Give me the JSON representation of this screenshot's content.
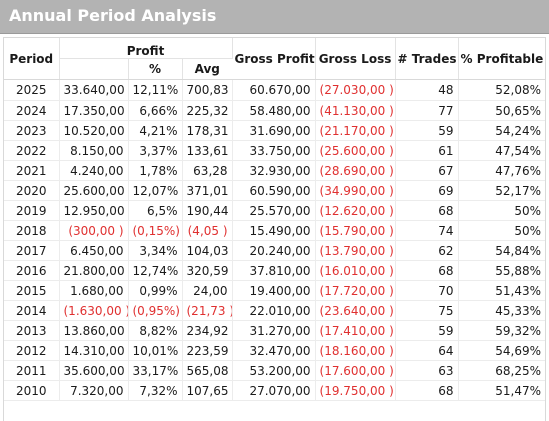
{
  "title": "Annual Period Analysis",
  "headers": {
    "period": "Period",
    "profit": "Profit",
    "pct": "%",
    "avg": "Avg",
    "gross_profit": "Gross Profit",
    "gross_loss": "Gross Loss",
    "trades": "# Trades",
    "profitable": "% Profitable"
  },
  "colors": {
    "title_bar": "#b3b3b3",
    "title_text": "#ffffff",
    "negative": "#e03030"
  },
  "rows": [
    {
      "period": "2025",
      "profit": "33.640,00",
      "pct": "12,11%",
      "avg": "700,83",
      "gross_profit": "60.670,00",
      "gross_loss": "(27.030,00 )",
      "trades": "48",
      "profitable": "52,08%"
    },
    {
      "period": "2024",
      "profit": "17.350,00",
      "pct": "6,66%",
      "avg": "225,32",
      "gross_profit": "58.480,00",
      "gross_loss": "(41.130,00 )",
      "trades": "77",
      "profitable": "50,65%"
    },
    {
      "period": "2023",
      "profit": "10.520,00",
      "pct": "4,21%",
      "avg": "178,31",
      "gross_profit": "31.690,00",
      "gross_loss": "(21.170,00 )",
      "trades": "59",
      "profitable": "54,24%"
    },
    {
      "period": "2022",
      "profit": "8.150,00",
      "pct": "3,37%",
      "avg": "133,61",
      "gross_profit": "33.750,00",
      "gross_loss": "(25.600,00 )",
      "trades": "61",
      "profitable": "47,54%"
    },
    {
      "period": "2021",
      "profit": "4.240,00",
      "pct": "1,78%",
      "avg": "63,28",
      "gross_profit": "32.930,00",
      "gross_loss": "(28.690,00 )",
      "trades": "67",
      "profitable": "47,76%"
    },
    {
      "period": "2020",
      "profit": "25.600,00",
      "pct": "12,07%",
      "avg": "371,01",
      "gross_profit": "60.590,00",
      "gross_loss": "(34.990,00 )",
      "trades": "69",
      "profitable": "52,17%"
    },
    {
      "period": "2019",
      "profit": "12.950,00",
      "pct": "6,5%",
      "avg": "190,44",
      "gross_profit": "25.570,00",
      "gross_loss": "(12.620,00 )",
      "trades": "68",
      "profitable": "50%"
    },
    {
      "period": "2018",
      "profit": "(300,00 )",
      "pct": "(0,15%)",
      "avg": "(4,05 )",
      "gross_profit": "15.490,00",
      "gross_loss": "(15.790,00 )",
      "trades": "74",
      "profitable": "50%",
      "negative": true
    },
    {
      "period": "2017",
      "profit": "6.450,00",
      "pct": "3,34%",
      "avg": "104,03",
      "gross_profit": "20.240,00",
      "gross_loss": "(13.790,00 )",
      "trades": "62",
      "profitable": "54,84%"
    },
    {
      "period": "2016",
      "profit": "21.800,00",
      "pct": "12,74%",
      "avg": "320,59",
      "gross_profit": "37.810,00",
      "gross_loss": "(16.010,00 )",
      "trades": "68",
      "profitable": "55,88%"
    },
    {
      "period": "2015",
      "profit": "1.680,00",
      "pct": "0,99%",
      "avg": "24,00",
      "gross_profit": "19.400,00",
      "gross_loss": "(17.720,00 )",
      "trades": "70",
      "profitable": "51,43%"
    },
    {
      "period": "2014",
      "profit": "(1.630,00 )",
      "pct": "(0,95%)",
      "avg": "(21,73 )",
      "gross_profit": "22.010,00",
      "gross_loss": "(23.640,00 )",
      "trades": "75",
      "profitable": "45,33%",
      "negative": true
    },
    {
      "period": "2013",
      "profit": "13.860,00",
      "pct": "8,82%",
      "avg": "234,92",
      "gross_profit": "31.270,00",
      "gross_loss": "(17.410,00 )",
      "trades": "59",
      "profitable": "59,32%"
    },
    {
      "period": "2012",
      "profit": "14.310,00",
      "pct": "10,01%",
      "avg": "223,59",
      "gross_profit": "32.470,00",
      "gross_loss": "(18.160,00 )",
      "trades": "64",
      "profitable": "54,69%"
    },
    {
      "period": "2011",
      "profit": "35.600,00",
      "pct": "33,17%",
      "avg": "565,08",
      "gross_profit": "53.200,00",
      "gross_loss": "(17.600,00 )",
      "trades": "63",
      "profitable": "68,25%"
    },
    {
      "period": "2010",
      "profit": "7.320,00",
      "pct": "7,32%",
      "avg": "107,65",
      "gross_profit": "27.070,00",
      "gross_loss": "(19.750,00 )",
      "trades": "68",
      "profitable": "51,47%"
    }
  ]
}
